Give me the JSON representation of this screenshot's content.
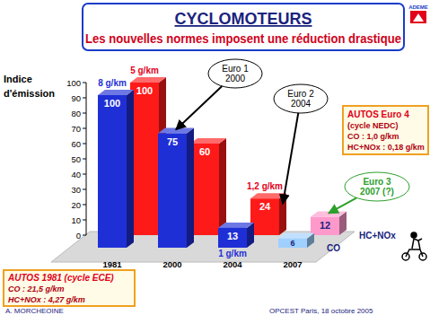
{
  "chart_data": {
    "type": "bar",
    "title": "CYCLOMOTEURS",
    "subtitle": "Les nouvelles normes imposent une réduction drastique",
    "y_label": [
      "Indice",
      "d'émission"
    ],
    "categories": [
      "1981",
      "2000",
      "2004",
      "2007"
    ],
    "series": [
      {
        "name": "CO",
        "colors": [
          "#1f2fd6",
          "#1f2fd6",
          "#1f2fd6",
          "#9fd0ff"
        ],
        "values": [
          100,
          75,
          13,
          6
        ],
        "value_notes": [
          "8 g/km",
          null,
          "1 g/km",
          null
        ]
      },
      {
        "name": "HC+NOx",
        "colors": [
          "#ff1a1a",
          "#ff1a1a",
          "#ff1a1a",
          "#ff99cc"
        ],
        "values": [
          100,
          60,
          24,
          12
        ],
        "value_notes": [
          "5 g/km",
          null,
          "1,2 g/km",
          null
        ]
      }
    ],
    "ylim": [
      0,
      100
    ],
    "yticks": [
      0,
      10,
      20,
      30,
      40,
      50,
      60,
      70,
      80,
      90,
      100
    ],
    "grid": false,
    "data_labels": true,
    "callouts": [
      {
        "lines": [
          "Euro 1",
          "2000"
        ]
      },
      {
        "lines": [
          "Euro 2",
          "2004"
        ]
      },
      {
        "lines": [
          "Euro 3",
          "2007 (?)"
        ]
      }
    ],
    "boxes": [
      {
        "lines": [
          "AUTOS Euro 4",
          "(cycle NEDC)",
          "CO : 1,0 g/km",
          "HC+NOx : 0,18 g/km"
        ]
      },
      {
        "lines": [
          "AUTOS 1981 (cycle ECE)",
          "CO : 21,5 g/km",
          "HC+NOx : 4,27 g/km"
        ]
      }
    ]
  },
  "logo": "ADEME",
  "footer": {
    "author": "A. MORCHEOINE",
    "event": "OPCEST Paris, 18 octobre 2005"
  }
}
